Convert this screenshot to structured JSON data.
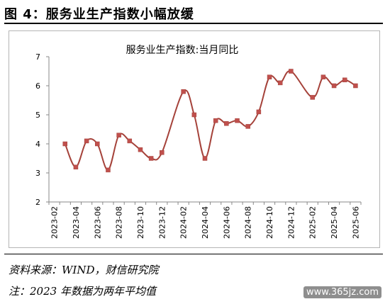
{
  "figure_title": "图 4：服务业生产指数小幅放缓",
  "source_note": "资料来源：WIND，财信研究院",
  "footnote": "注：2023 年数据为两年平均值",
  "watermark": "www.365jz.com",
  "chart_data": {
    "type": "line",
    "title": "服务业生产指数:当月同比",
    "xlabel": "",
    "ylabel": "",
    "ylim": [
      2,
      7
    ],
    "yticks": [
      2,
      3,
      4,
      5,
      6,
      7
    ],
    "xtick_labels": [
      "2023-02",
      "2023-04",
      "2023-06",
      "2023-08",
      "2023-10",
      "2023-12",
      "2024-02",
      "2024-04",
      "2024-06",
      "2024-08",
      "2024-10",
      "2024-12",
      "2025-02",
      "2025-04",
      "2025-06"
    ],
    "x": [
      "2023-02",
      "2023-03",
      "2023-04",
      "2023-05",
      "2023-06",
      "2023-07",
      "2023-08",
      "2023-09",
      "2023-10",
      "2023-11",
      "2023-12",
      "2024-01",
      "2024-02",
      "2024-03",
      "2024-04",
      "2024-05",
      "2024-06",
      "2024-07",
      "2024-08",
      "2024-09",
      "2024-10",
      "2024-11",
      "2024-12",
      "2025-01",
      "2025-02",
      "2025-03",
      "2025-04",
      "2025-05",
      "2025-06"
    ],
    "series": [
      {
        "values": [
          null,
          4.0,
          3.2,
          4.1,
          4.0,
          3.1,
          4.3,
          4.1,
          3.8,
          3.5,
          3.7,
          null,
          5.8,
          5.0,
          3.5,
          4.8,
          4.7,
          4.8,
          4.6,
          5.1,
          6.3,
          6.1,
          6.5,
          null,
          5.6,
          6.3,
          6.0,
          6.2,
          6.0
        ]
      }
    ],
    "line_color": "#a5423a",
    "marker_color": "#c0504d",
    "grid": false,
    "legend": false
  }
}
